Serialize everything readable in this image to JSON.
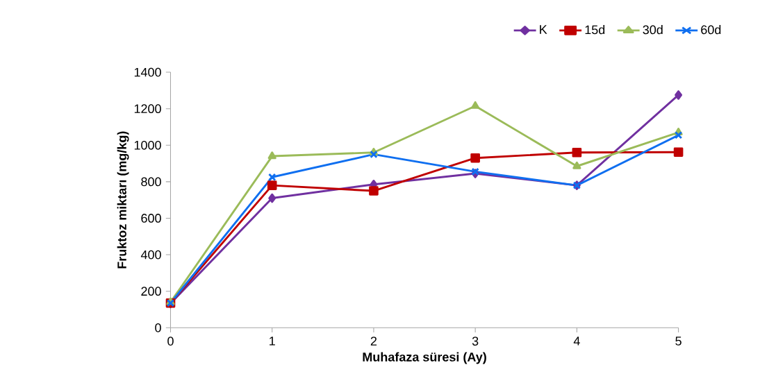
{
  "chart_data": {
    "type": "line",
    "xlabel": "Muhafaza süresi (Ay)",
    "ylabel": "Fruktoz miktarı  (mg/kg)",
    "x": [
      0,
      1,
      2,
      3,
      4,
      5
    ],
    "series": [
      {
        "name": "K",
        "color": "#7030a0",
        "marker": "diamond",
        "values": [
          133,
          710,
          785,
          845,
          780,
          1275
        ]
      },
      {
        "name": "15d",
        "color": "#c00000",
        "marker": "square",
        "values": [
          135,
          780,
          750,
          930,
          960,
          962
        ]
      },
      {
        "name": "30d",
        "color": "#9bbb59",
        "marker": "triangle",
        "values": [
          140,
          940,
          960,
          1215,
          885,
          1070
        ]
      },
      {
        "name": "60d",
        "color": "#0f6ff0",
        "marker": "cross",
        "values": [
          135,
          825,
          950,
          855,
          780,
          1055
        ]
      }
    ],
    "xlim": [
      0,
      5
    ],
    "xticks": [
      0,
      1,
      2,
      3,
      4,
      5
    ],
    "ylim": [
      0,
      1400
    ],
    "yticks": [
      0,
      200,
      400,
      600,
      800,
      1000,
      1200,
      1400
    ],
    "grid": false,
    "legend": "top right",
    "line_style": "solid"
  }
}
